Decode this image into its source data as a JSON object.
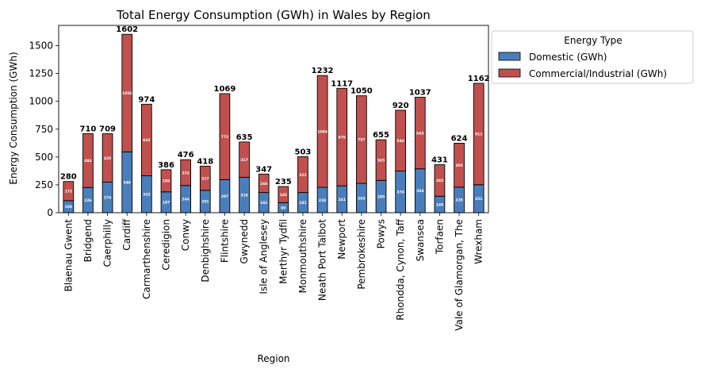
{
  "chart_data": {
    "type": "bar",
    "stacked": true,
    "title": "Total Energy Consumption (GWh) in Wales by Region",
    "xlabel": "Region",
    "ylabel": "Energy Consumption (GWh)",
    "ylim": [
      0,
      1682
    ],
    "yticks": [
      0,
      250,
      500,
      750,
      1000,
      1250,
      1500
    ],
    "grid": false,
    "legend": {
      "title": "Energy Type",
      "placement": "outside-top-right"
    },
    "categories": [
      "Blaenau Gwent",
      "Bridgend",
      "Caerphilly",
      "Cardiff",
      "Carmarthenshire",
      "Ceredigion",
      "Conwy",
      "Denbighshire",
      "Flintshire",
      "Gwynedd",
      "Isle of Anglesey",
      "Merthyr Tydfil",
      "Monmouthshire",
      "Neath Port Talbot",
      "Newport",
      "Pembrokeshire",
      "Powys",
      "Rhondda, Cynon, Taff",
      "Swansea",
      "Torfaen",
      "Vale of Glamorgan, The",
      "Wrexham"
    ],
    "series": [
      {
        "name": "Domestic (GWh)",
        "color": "#4a7ebb",
        "values": [
          108,
          226,
          274,
          546,
          332,
          187,
          244,
          201,
          297,
          318,
          181,
          90,
          181,
          228,
          241,
          263,
          290,
          374,
          394,
          148,
          229,
          251
        ]
      },
      {
        "name": "Commercial/Industrial (GWh)",
        "color": "#c0504d",
        "values": [
          172,
          484,
          435,
          1056,
          642,
          199,
          232,
          217,
          772,
          317,
          166,
          145,
          322,
          1004,
          876,
          787,
          365,
          546,
          643,
          283,
          395,
          911
        ]
      }
    ],
    "totals": [
      280,
      710,
      709,
      1602,
      974,
      386,
      476,
      418,
      1069,
      635,
      347,
      235,
      503,
      1232,
      1117,
      1050,
      655,
      920,
      1037,
      431,
      624,
      1162
    ]
  }
}
